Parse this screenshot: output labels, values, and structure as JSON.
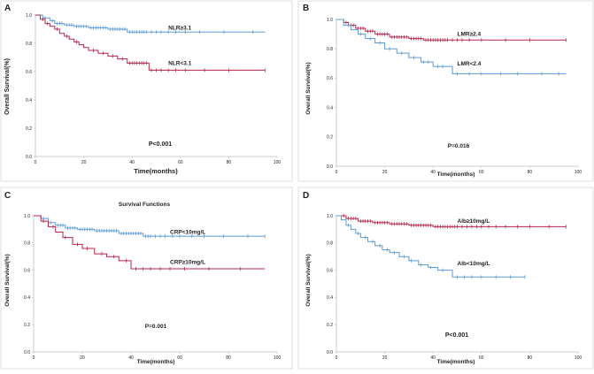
{
  "colors": {
    "red": "#b5254a",
    "blue": "#5b9bd5",
    "axis": "#bfbfbf",
    "text": "#222222"
  },
  "chart_data": [
    {
      "type": "line",
      "panel_letter": "A",
      "title": "",
      "xlabel": "Time(months)",
      "ylabel": "Overall Survival(%)",
      "xlim": [
        0,
        100
      ],
      "ylim": [
        0,
        1
      ],
      "xticks": [
        "0",
        "20",
        "40",
        "60",
        "80",
        "100"
      ],
      "yticks": [
        "0.0",
        "0.2",
        "0.4",
        "0.6",
        "0.8",
        "1.0"
      ],
      "pvalue": "P<0.001",
      "series": [
        {
          "name": "NLR≥3.1",
          "color": "blue",
          "label_at": [
            55,
            0.91
          ],
          "steps": [
            [
              0,
              1.0
            ],
            [
              3,
              0.98
            ],
            [
              6,
              0.96
            ],
            [
              8,
              0.94
            ],
            [
              12,
              0.93
            ],
            [
              16,
              0.92
            ],
            [
              22,
              0.91
            ],
            [
              30,
              0.9
            ],
            [
              38,
              0.88
            ],
            [
              95,
              0.88
            ]
          ],
          "censors": [
            4,
            7,
            9,
            10,
            11,
            13,
            14,
            15,
            17,
            18,
            19,
            20,
            21,
            23,
            24,
            25,
            26,
            27,
            28,
            29,
            31,
            32,
            33,
            34,
            35,
            36,
            37,
            39,
            40,
            41,
            42,
            43,
            44,
            45,
            46,
            48,
            50,
            52,
            55,
            58,
            62,
            68,
            78,
            90
          ]
        },
        {
          "name": "NLR<3.1",
          "color": "red",
          "label_at": [
            55,
            0.66
          ],
          "steps": [
            [
              0,
              1.0
            ],
            [
              2,
              0.97
            ],
            [
              4,
              0.94
            ],
            [
              6,
              0.92
            ],
            [
              8,
              0.9
            ],
            [
              10,
              0.87
            ],
            [
              12,
              0.85
            ],
            [
              14,
              0.83
            ],
            [
              16,
              0.81
            ],
            [
              18,
              0.79
            ],
            [
              20,
              0.77
            ],
            [
              22,
              0.75
            ],
            [
              26,
              0.73
            ],
            [
              30,
              0.71
            ],
            [
              34,
              0.69
            ],
            [
              38,
              0.66
            ],
            [
              47,
              0.61
            ],
            [
              95,
              0.61
            ]
          ],
          "censors": [
            3,
            5,
            9,
            13,
            17,
            24,
            28,
            32,
            36,
            39,
            40,
            41,
            42,
            43,
            44,
            45,
            46,
            48,
            50,
            52,
            55,
            58,
            62,
            70,
            80,
            95
          ]
        }
      ]
    },
    {
      "type": "line",
      "panel_letter": "B",
      "title": "",
      "xlabel": "Time(months)",
      "ylabel": "Overall Survival(%)",
      "xlim": [
        0,
        100
      ],
      "ylim": [
        0,
        1
      ],
      "xticks": [
        "0",
        "20",
        "40",
        "60",
        "80",
        "100"
      ],
      "yticks": [
        "0.0",
        "0.2",
        "0.4",
        "0.6",
        "0.8",
        "1.0"
      ],
      "pvalue": "P=0.016",
      "series": [
        {
          "name": "LMR≥2.4",
          "color": "red",
          "label_at": [
            50,
            0.9
          ],
          "steps": [
            [
              0,
              1.0
            ],
            [
              3,
              0.98
            ],
            [
              5,
              0.96
            ],
            [
              8,
              0.94
            ],
            [
              12,
              0.92
            ],
            [
              16,
              0.9
            ],
            [
              22,
              0.88
            ],
            [
              30,
              0.87
            ],
            [
              36,
              0.86
            ],
            [
              95,
              0.86
            ]
          ],
          "censors": [
            4,
            6,
            7,
            9,
            10,
            11,
            13,
            14,
            15,
            17,
            18,
            19,
            20,
            21,
            23,
            24,
            25,
            26,
            27,
            28,
            29,
            31,
            32,
            33,
            34,
            35,
            37,
            38,
            39,
            40,
            41,
            42,
            43,
            44,
            45,
            46,
            48,
            50,
            52,
            55,
            60,
            70,
            80,
            95
          ]
        },
        {
          "name": "LMR<2.4",
          "color": "blue",
          "label_at": [
            50,
            0.7
          ],
          "steps": [
            [
              0,
              1.0
            ],
            [
              3,
              0.96
            ],
            [
              6,
              0.93
            ],
            [
              9,
              0.9
            ],
            [
              12,
              0.87
            ],
            [
              16,
              0.84
            ],
            [
              20,
              0.8
            ],
            [
              25,
              0.77
            ],
            [
              30,
              0.74
            ],
            [
              35,
              0.71
            ],
            [
              40,
              0.68
            ],
            [
              48,
              0.63
            ],
            [
              95,
              0.63
            ]
          ],
          "censors": [
            5,
            10,
            14,
            18,
            22,
            27,
            32,
            36,
            38,
            42,
            44,
            50,
            55,
            60,
            68,
            75,
            85,
            92
          ]
        }
      ]
    },
    {
      "type": "line",
      "panel_letter": "C",
      "title": "Survival Functions",
      "xlabel": "Time(months)",
      "ylabel": "Overall Survival(%)",
      "xlim": [
        0,
        100
      ],
      "ylim": [
        0,
        1
      ],
      "xticks": [
        "0",
        "20",
        "40",
        "60",
        "80",
        "100"
      ],
      "yticks": [
        "0.0",
        "0.2",
        "0.4",
        "0.6",
        "0.8",
        "1.0"
      ],
      "pvalue": "P=0.001",
      "series": [
        {
          "name": "CRP<10mg/L",
          "color": "blue",
          "label_at": [
            56,
            0.88
          ],
          "steps": [
            [
              0,
              1.0
            ],
            [
              3,
              0.98
            ],
            [
              6,
              0.95
            ],
            [
              9,
              0.93
            ],
            [
              13,
              0.91
            ],
            [
              18,
              0.9
            ],
            [
              25,
              0.89
            ],
            [
              35,
              0.87
            ],
            [
              45,
              0.85
            ],
            [
              95,
              0.85
            ]
          ],
          "censors": [
            4,
            7,
            10,
            11,
            12,
            14,
            15,
            16,
            17,
            19,
            20,
            21,
            22,
            23,
            24,
            26,
            27,
            28,
            29,
            30,
            31,
            32,
            33,
            34,
            36,
            37,
            38,
            39,
            40,
            41,
            42,
            43,
            44,
            46,
            47,
            48,
            50,
            52,
            54,
            57,
            60,
            65,
            70,
            78,
            88,
            95
          ]
        },
        {
          "name": "CRP≥10mg/L",
          "color": "red",
          "label_at": [
            56,
            0.66
          ],
          "steps": [
            [
              0,
              1.0
            ],
            [
              3,
              0.96
            ],
            [
              6,
              0.92
            ],
            [
              9,
              0.88
            ],
            [
              12,
              0.84
            ],
            [
              16,
              0.79
            ],
            [
              20,
              0.76
            ],
            [
              25,
              0.72
            ],
            [
              30,
              0.7
            ],
            [
              35,
              0.67
            ],
            [
              40,
              0.61
            ],
            [
              95,
              0.61
            ]
          ],
          "censors": [
            4,
            8,
            13,
            18,
            22,
            28,
            33,
            38,
            42,
            45,
            48,
            52,
            56,
            62,
            72,
            85
          ]
        }
      ]
    },
    {
      "type": "line",
      "panel_letter": "D",
      "title": "",
      "xlabel": "Time(months)",
      "ylabel": "Overall Survival(%)",
      "xlim": [
        0,
        100
      ],
      "ylim": [
        0,
        1
      ],
      "xticks": [
        "0",
        "20",
        "40",
        "60",
        "80",
        "100"
      ],
      "yticks": [
        "0.0",
        "0.2",
        "0.4",
        "0.6",
        "0.8",
        "1.0"
      ],
      "pvalue": "P<0.001",
      "series": [
        {
          "name": "Alb≥10mg/L",
          "color": "red",
          "label_at": [
            50,
            0.96
          ],
          "steps": [
            [
              0,
              1.0
            ],
            [
              4,
              0.98
            ],
            [
              9,
              0.96
            ],
            [
              15,
              0.95
            ],
            [
              22,
              0.94
            ],
            [
              30,
              0.93
            ],
            [
              40,
              0.92
            ],
            [
              95,
              0.92
            ]
          ],
          "censors": [
            3,
            5,
            6,
            7,
            8,
            10,
            11,
            12,
            13,
            14,
            16,
            17,
            18,
            19,
            20,
            21,
            23,
            24,
            25,
            26,
            27,
            28,
            29,
            31,
            32,
            33,
            34,
            35,
            36,
            37,
            38,
            39,
            41,
            42,
            43,
            44,
            45,
            46,
            47,
            48,
            49,
            50,
            52,
            54,
            56,
            58,
            60,
            63,
            66,
            70,
            75,
            80,
            88,
            95
          ]
        },
        {
          "name": "Alb<10mg/L",
          "color": "blue",
          "label_at": [
            50,
            0.65
          ],
          "steps": [
            [
              0,
              1.0
            ],
            [
              2,
              0.97
            ],
            [
              4,
              0.93
            ],
            [
              6,
              0.9
            ],
            [
              8,
              0.87
            ],
            [
              10,
              0.84
            ],
            [
              13,
              0.81
            ],
            [
              16,
              0.78
            ],
            [
              19,
              0.75
            ],
            [
              22,
              0.73
            ],
            [
              26,
              0.7
            ],
            [
              30,
              0.67
            ],
            [
              34,
              0.64
            ],
            [
              38,
              0.62
            ],
            [
              42,
              0.6
            ],
            [
              48,
              0.55
            ],
            [
              78,
              0.55
            ]
          ],
          "censors": [
            5,
            9,
            12,
            15,
            18,
            21,
            24,
            28,
            31,
            35,
            39,
            44,
            50,
            53,
            56,
            60,
            66,
            72,
            78
          ]
        }
      ]
    }
  ]
}
